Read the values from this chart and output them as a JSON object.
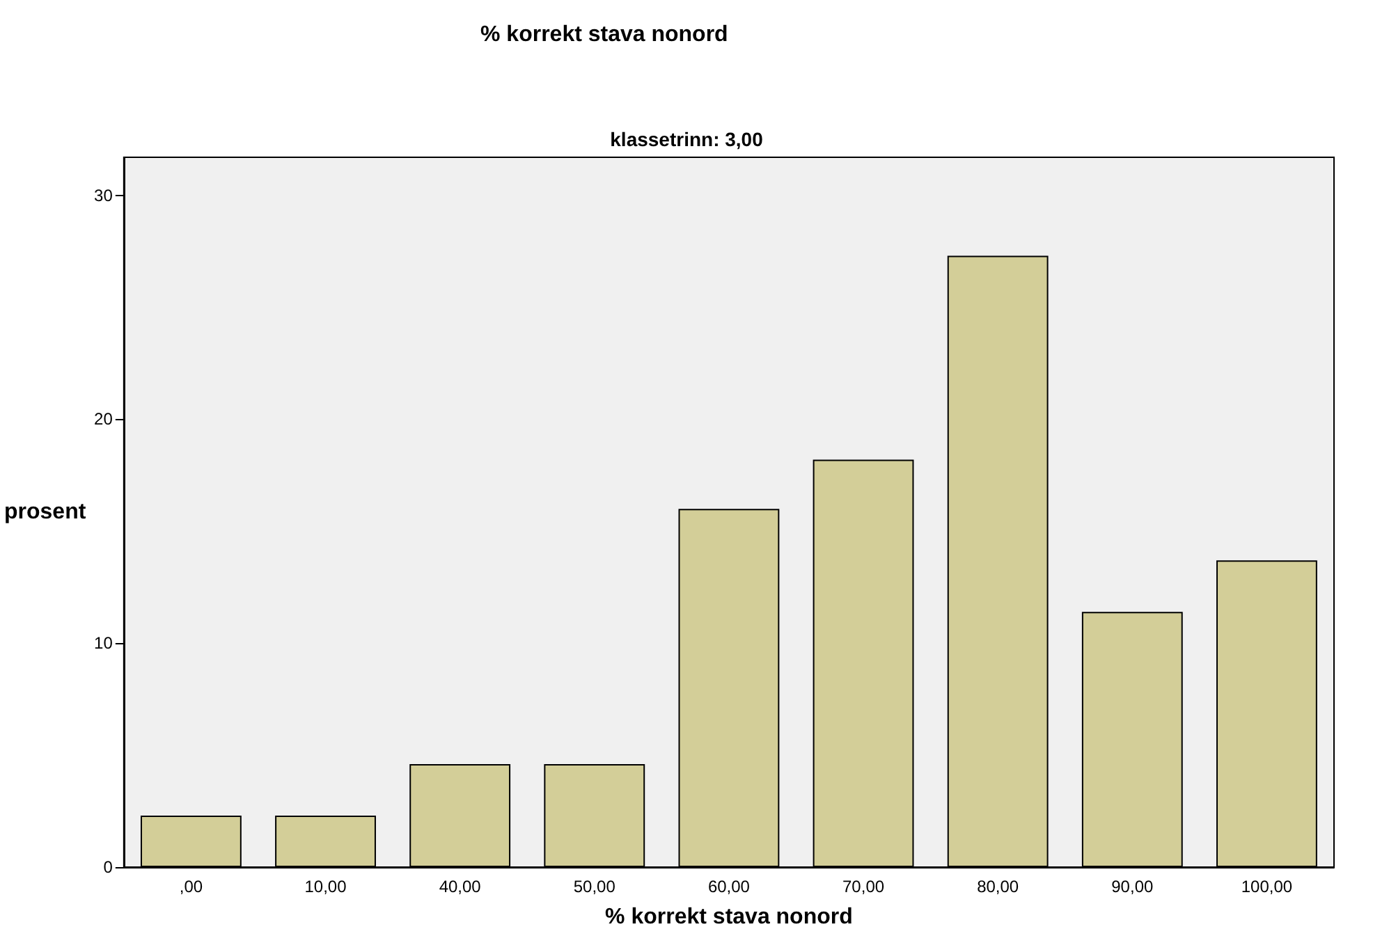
{
  "chart_data": {
    "type": "bar",
    "title": "% korrekt stava nonord",
    "subtitle": "klassetrinn: 3,00",
    "xlabel": "% korrekt stava nonord",
    "ylabel": "prosent",
    "categories": [
      ",00",
      "10,00",
      "40,00",
      "50,00",
      "60,00",
      "70,00",
      "80,00",
      "90,00",
      "100,00"
    ],
    "values": [
      2.3,
      2.3,
      4.6,
      4.6,
      16.0,
      18.2,
      27.3,
      11.4,
      13.7
    ],
    "color": "#d3ce98",
    "ylim": [
      0,
      31.7
    ],
    "yticks": [
      0,
      10,
      20,
      30
    ],
    "grid": false
  }
}
